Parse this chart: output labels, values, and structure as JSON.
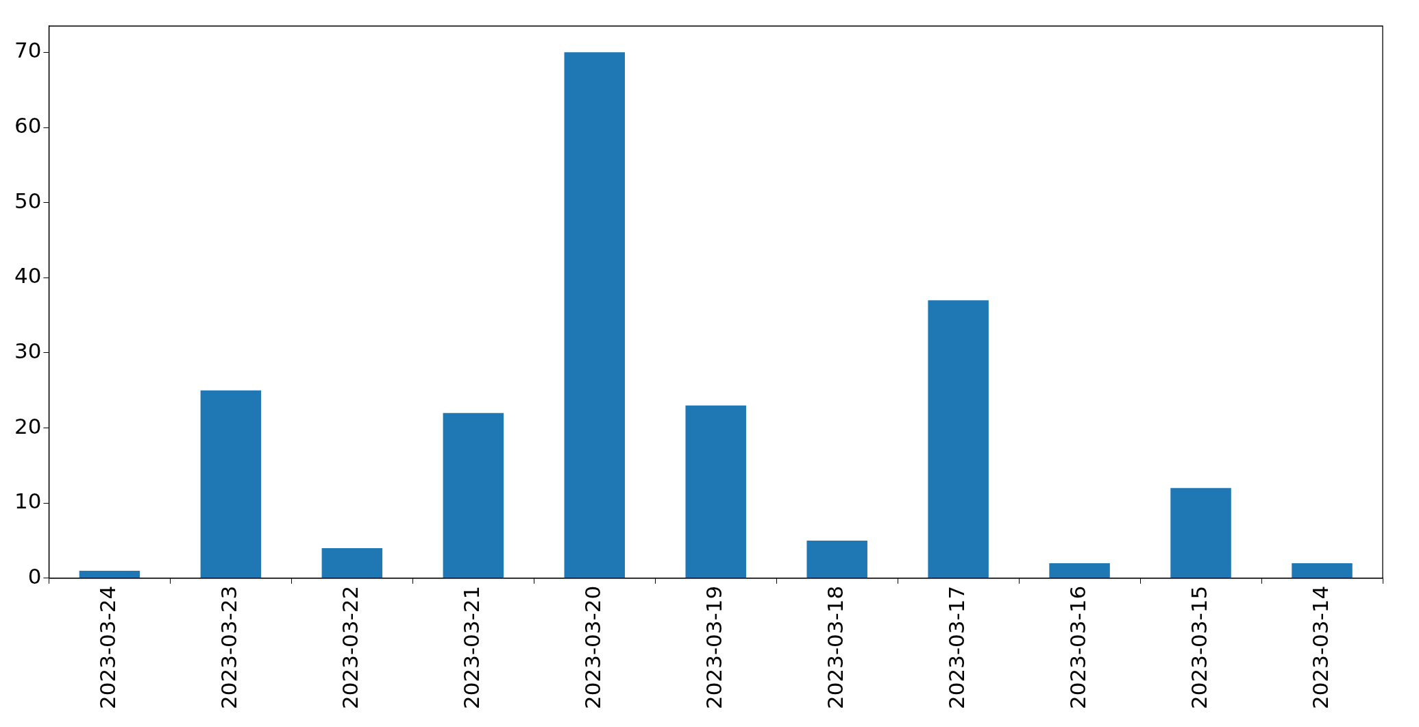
{
  "chart_data": {
    "type": "bar",
    "categories": [
      "2023-03-24",
      "2023-03-23",
      "2023-03-22",
      "2023-03-21",
      "2023-03-20",
      "2023-03-19",
      "2023-03-18",
      "2023-03-17",
      "2023-03-16",
      "2023-03-15",
      "2023-03-14"
    ],
    "values": [
      1,
      25,
      4,
      22,
      70,
      23,
      5,
      37,
      2,
      12,
      2
    ],
    "color": "#1f77b4",
    "ylim": [
      0,
      73.5
    ],
    "yticks": [
      0,
      10,
      20,
      30,
      40,
      50,
      60,
      70
    ],
    "grid": false,
    "legend": false
  }
}
